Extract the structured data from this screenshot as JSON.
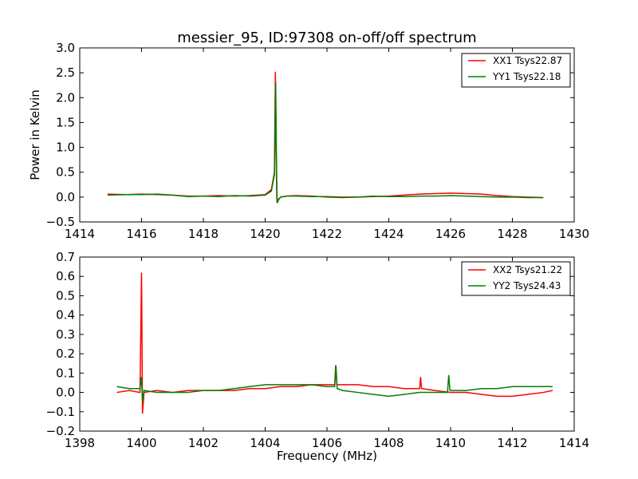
{
  "chart_data": [
    {
      "type": "line",
      "title": "messier_95, ID:97308 on-off/off spectrum",
      "xlabel": "",
      "ylabel": "Power in Kelvin",
      "xlim": [
        1414,
        1430
      ],
      "ylim": [
        -0.5,
        3.0
      ],
      "xticks": [
        "1414",
        "1416",
        "1418",
        "1420",
        "1422",
        "1424",
        "1426",
        "1428",
        "1430"
      ],
      "yticks": [
        "−0.5",
        "0.0",
        "0.5",
        "1.0",
        "1.5",
        "2.0",
        "2.5",
        "3.0"
      ],
      "legend_position": "top-right",
      "series": [
        {
          "name": "XX1 Tsys22.87",
          "color": "#ff0000",
          "x": [
            1414.9,
            1415.5,
            1416.0,
            1416.5,
            1417.0,
            1417.5,
            1418.0,
            1418.5,
            1419.0,
            1419.5,
            1420.0,
            1420.2,
            1420.3,
            1420.33,
            1420.36,
            1420.38,
            1420.42,
            1420.5,
            1420.7,
            1421.0,
            1421.5,
            1422.0,
            1422.5,
            1423.0,
            1423.5,
            1424.0,
            1424.5,
            1425.0,
            1425.5,
            1426.0,
            1426.5,
            1427.0,
            1427.5,
            1428.0,
            1428.5,
            1429.0
          ],
          "values": [
            0.06,
            0.05,
            0.06,
            0.05,
            0.04,
            0.02,
            0.02,
            0.03,
            0.02,
            0.03,
            0.05,
            0.15,
            0.5,
            2.52,
            0.6,
            -0.1,
            -0.05,
            0.0,
            0.02,
            0.03,
            0.02,
            0.0,
            -0.01,
            0.0,
            0.01,
            0.02,
            0.04,
            0.06,
            0.07,
            0.08,
            0.07,
            0.06,
            0.03,
            0.01,
            0.0,
            -0.01
          ]
        },
        {
          "name": "YY1 Tsys22.18",
          "color": "#008000",
          "x": [
            1414.9,
            1415.5,
            1416.0,
            1416.5,
            1417.0,
            1417.5,
            1418.0,
            1418.5,
            1419.0,
            1419.5,
            1420.0,
            1420.2,
            1420.3,
            1420.34,
            1420.37,
            1420.39,
            1420.43,
            1420.5,
            1420.7,
            1421.0,
            1421.5,
            1422.0,
            1422.5,
            1423.0,
            1423.5,
            1424.0,
            1424.5,
            1425.0,
            1425.5,
            1426.0,
            1426.5,
            1427.0,
            1427.5,
            1428.0,
            1428.5,
            1429.0
          ],
          "values": [
            0.04,
            0.05,
            0.05,
            0.06,
            0.04,
            0.01,
            0.02,
            0.01,
            0.03,
            0.02,
            0.04,
            0.12,
            0.45,
            2.3,
            0.5,
            -0.12,
            -0.06,
            0.0,
            0.02,
            0.02,
            0.01,
            0.01,
            0.0,
            0.0,
            0.02,
            0.01,
            0.01,
            0.02,
            0.02,
            0.03,
            0.02,
            0.01,
            0.0,
            0.0,
            -0.01,
            -0.01
          ]
        }
      ]
    },
    {
      "type": "line",
      "title": "",
      "xlabel": "Frequency (MHz)",
      "ylabel": "",
      "xlim": [
        1398,
        1414
      ],
      "ylim": [
        -0.2,
        0.7
      ],
      "xticks": [
        "1398",
        "1400",
        "1402",
        "1404",
        "1406",
        "1408",
        "1410",
        "1412",
        "1414"
      ],
      "yticks": [
        "−0.2",
        "−0.1",
        "0.0",
        "0.1",
        "0.2",
        "0.3",
        "0.4",
        "0.5",
        "0.6",
        "0.7"
      ],
      "legend_position": "top-right",
      "series": [
        {
          "name": "XX2 Tsys21.22",
          "color": "#ff0000",
          "x": [
            1399.2,
            1399.6,
            1399.95,
            1400.0,
            1400.03,
            1400.08,
            1400.5,
            1401.0,
            1401.5,
            1402.0,
            1402.5,
            1403.0,
            1403.5,
            1404.0,
            1404.5,
            1405.0,
            1405.5,
            1406.0,
            1406.25,
            1406.28,
            1406.32,
            1406.5,
            1407.0,
            1407.5,
            1408.0,
            1408.5,
            1409.0,
            1409.03,
            1409.06,
            1409.5,
            1410.0,
            1410.5,
            1411.0,
            1411.5,
            1412.0,
            1412.5,
            1413.0,
            1413.3
          ],
          "values": [
            0.0,
            0.01,
            0.0,
            0.62,
            -0.11,
            0.0,
            0.01,
            0.0,
            0.01,
            0.01,
            0.01,
            0.01,
            0.02,
            0.02,
            0.03,
            0.03,
            0.04,
            0.04,
            0.04,
            0.14,
            0.04,
            0.04,
            0.04,
            0.03,
            0.03,
            0.02,
            0.02,
            0.08,
            0.02,
            0.01,
            0.0,
            0.0,
            -0.01,
            -0.02,
            -0.02,
            -0.01,
            0.0,
            0.01
          ]
        },
        {
          "name": "YY2 Tsys24.43",
          "color": "#008000",
          "x": [
            1399.2,
            1399.6,
            1399.95,
            1400.0,
            1400.03,
            1400.08,
            1400.5,
            1401.0,
            1401.5,
            1402.0,
            1402.5,
            1403.0,
            1403.5,
            1404.0,
            1404.5,
            1405.0,
            1405.5,
            1406.0,
            1406.25,
            1406.29,
            1406.33,
            1406.5,
            1407.0,
            1407.5,
            1408.0,
            1408.5,
            1409.0,
            1409.5,
            1409.9,
            1409.94,
            1409.98,
            1410.5,
            1411.0,
            1411.5,
            1412.0,
            1412.5,
            1413.0,
            1413.3
          ],
          "values": [
            0.03,
            0.02,
            0.02,
            0.08,
            -0.05,
            0.01,
            0.0,
            0.0,
            0.0,
            0.01,
            0.01,
            0.02,
            0.03,
            0.04,
            0.04,
            0.04,
            0.04,
            0.03,
            0.03,
            0.14,
            0.02,
            0.01,
            0.0,
            -0.01,
            -0.02,
            -0.01,
            0.0,
            0.0,
            0.0,
            0.09,
            0.01,
            0.01,
            0.02,
            0.02,
            0.03,
            0.03,
            0.03,
            0.03
          ]
        }
      ]
    }
  ]
}
